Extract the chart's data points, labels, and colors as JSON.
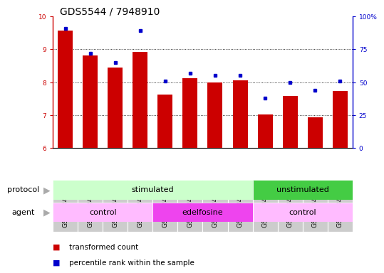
{
  "title": "GDS5544 / 7948910",
  "samples": [
    "GSM1084272",
    "GSM1084273",
    "GSM1084274",
    "GSM1084275",
    "GSM1084276",
    "GSM1084277",
    "GSM1084278",
    "GSM1084279",
    "GSM1084260",
    "GSM1084261",
    "GSM1084262",
    "GSM1084263"
  ],
  "transformed_count": [
    9.57,
    8.82,
    8.45,
    8.93,
    7.62,
    8.13,
    7.98,
    8.05,
    7.01,
    7.58,
    6.93,
    7.72
  ],
  "percentile_rank": [
    91,
    72,
    65,
    89,
    51,
    57,
    55,
    55,
    38,
    50,
    44,
    51
  ],
  "ylim_left": [
    6,
    10
  ],
  "ylim_right": [
    0,
    100
  ],
  "yticks_left": [
    6,
    7,
    8,
    9,
    10
  ],
  "yticks_right": [
    0,
    25,
    50,
    75,
    100
  ],
  "yticklabels_right": [
    "0",
    "25",
    "50",
    "75",
    "100%"
  ],
  "bar_color": "#cc0000",
  "dot_color": "#0000cc",
  "bar_bottom": 6,
  "protocol_labels": [
    {
      "label": "stimulated",
      "start": 0,
      "end": 8,
      "color": "#ccffcc"
    },
    {
      "label": "unstimulated",
      "start": 8,
      "end": 12,
      "color": "#44cc44"
    }
  ],
  "agent_labels": [
    {
      "label": "control",
      "start": 0,
      "end": 4,
      "color": "#ffbbff"
    },
    {
      "label": "edelfosine",
      "start": 4,
      "end": 8,
      "color": "#ee44ee"
    },
    {
      "label": "control",
      "start": 8,
      "end": 12,
      "color": "#ffbbff"
    }
  ],
  "legend_items": [
    {
      "label": "transformed count",
      "color": "#cc0000"
    },
    {
      "label": "percentile rank within the sample",
      "color": "#0000cc"
    }
  ],
  "protocol_arrow_label": "protocol",
  "agent_arrow_label": "agent",
  "title_fontsize": 10,
  "tick_fontsize": 6.5,
  "label_fontsize": 8,
  "legend_fontsize": 7.5,
  "bg_color": "#ffffff",
  "xtick_box_color": "#cccccc",
  "arrow_color": "#aaaaaa"
}
